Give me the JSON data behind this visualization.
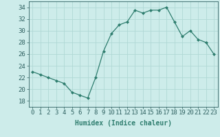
{
  "x": [
    0,
    1,
    2,
    3,
    4,
    5,
    6,
    7,
    8,
    9,
    10,
    11,
    12,
    13,
    14,
    15,
    16,
    17,
    18,
    19,
    20,
    21,
    22,
    23
  ],
  "y": [
    23,
    22.5,
    22,
    21.5,
    21,
    19.5,
    19,
    18.5,
    22,
    26.5,
    29.5,
    31,
    31.5,
    33.5,
    33,
    33.5,
    33.5,
    34,
    31.5,
    29,
    30,
    28.5,
    28,
    26
  ],
  "line_color": "#2e7d6e",
  "marker": "D",
  "marker_size": 2,
  "bg_color": "#cdecea",
  "grid_color": "#b0d8d5",
  "xlabel": "Humidex (Indice chaleur)",
  "xlabel_fontsize": 7,
  "tick_fontsize": 6.5,
  "ylim": [
    17,
    35
  ],
  "yticks": [
    18,
    20,
    22,
    24,
    26,
    28,
    30,
    32,
    34
  ],
  "xticks": [
    0,
    1,
    2,
    3,
    4,
    5,
    6,
    7,
    8,
    9,
    10,
    11,
    12,
    13,
    14,
    15,
    16,
    17,
    18,
    19,
    20,
    21,
    22,
    23
  ]
}
